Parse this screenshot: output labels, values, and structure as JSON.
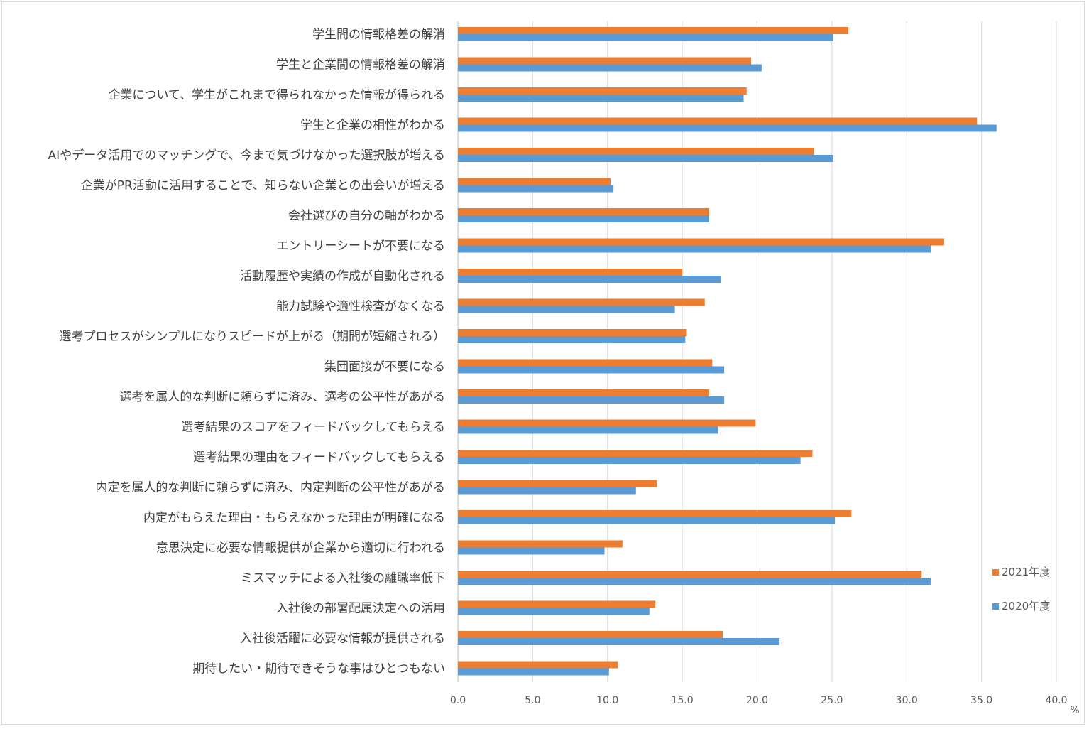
{
  "chart_data": {
    "type": "bar",
    "orientation": "horizontal",
    "categories": [
      "学生間の情報格差の解消",
      "学生と企業間の情報格差の解消",
      "企業について、学生がこれまで得られなかった情報が得られる",
      "学生と企業の相性がわかる",
      "AIやデータ活用でのマッチングで、今まで気づけなかった選択肢が増える",
      "企業がPR活動に活用することで、知らない企業との出会いが増える",
      "会社選びの自分の軸がわかる",
      "エントリーシートが不要になる",
      "活動履歴や実績の作成が自動化される",
      "能力試験や適性検査がなくなる",
      "選考プロセスがシンプルになりスピードが上がる（期間が短縮される）",
      "集団面接が不要になる",
      "選考を属人的な判断に頼らずに済み、選考の公平性があがる",
      "選考結果のスコアをフィードバックしてもらえる",
      "選考結果の理由をフィードバックしてもらえる",
      "内定を属人的な判断に頼らずに済み、内定判断の公平性があがる",
      "内定がもらえた理由・もらえなかった理由が明確になる",
      "意思決定に必要な情報提供が企業から適切に行われる",
      "ミスマッチによる入社後の離職率低下",
      "入社後の部署配属決定への活用",
      "入社後活躍に必要な情報が提供される",
      "期待したい・期待できそうな事はひとつもない"
    ],
    "series": [
      {
        "name": "2021年度",
        "color": "#ed7d31",
        "values": [
          26.1,
          19.6,
          19.3,
          34.7,
          23.8,
          10.2,
          16.8,
          32.5,
          15.0,
          16.5,
          15.3,
          17.0,
          16.8,
          19.9,
          23.7,
          13.3,
          26.3,
          11.0,
          31.0,
          13.2,
          17.7,
          10.7
        ]
      },
      {
        "name": "2020年度",
        "color": "#5b9bd5",
        "values": [
          25.1,
          20.3,
          19.1,
          36.0,
          25.1,
          10.4,
          16.8,
          31.6,
          17.6,
          14.5,
          15.2,
          17.8,
          17.8,
          17.4,
          22.9,
          11.9,
          25.2,
          9.8,
          31.6,
          12.8,
          21.5,
          10.1
        ]
      }
    ],
    "xlim": [
      0,
      40
    ],
    "xticks": [
      "0.0",
      "5.0",
      "10.0",
      "15.0",
      "20.0",
      "25.0",
      "30.0",
      "35.0",
      "40.0"
    ],
    "x_unit": "%",
    "grid": "vertical",
    "legend_position": "right"
  }
}
